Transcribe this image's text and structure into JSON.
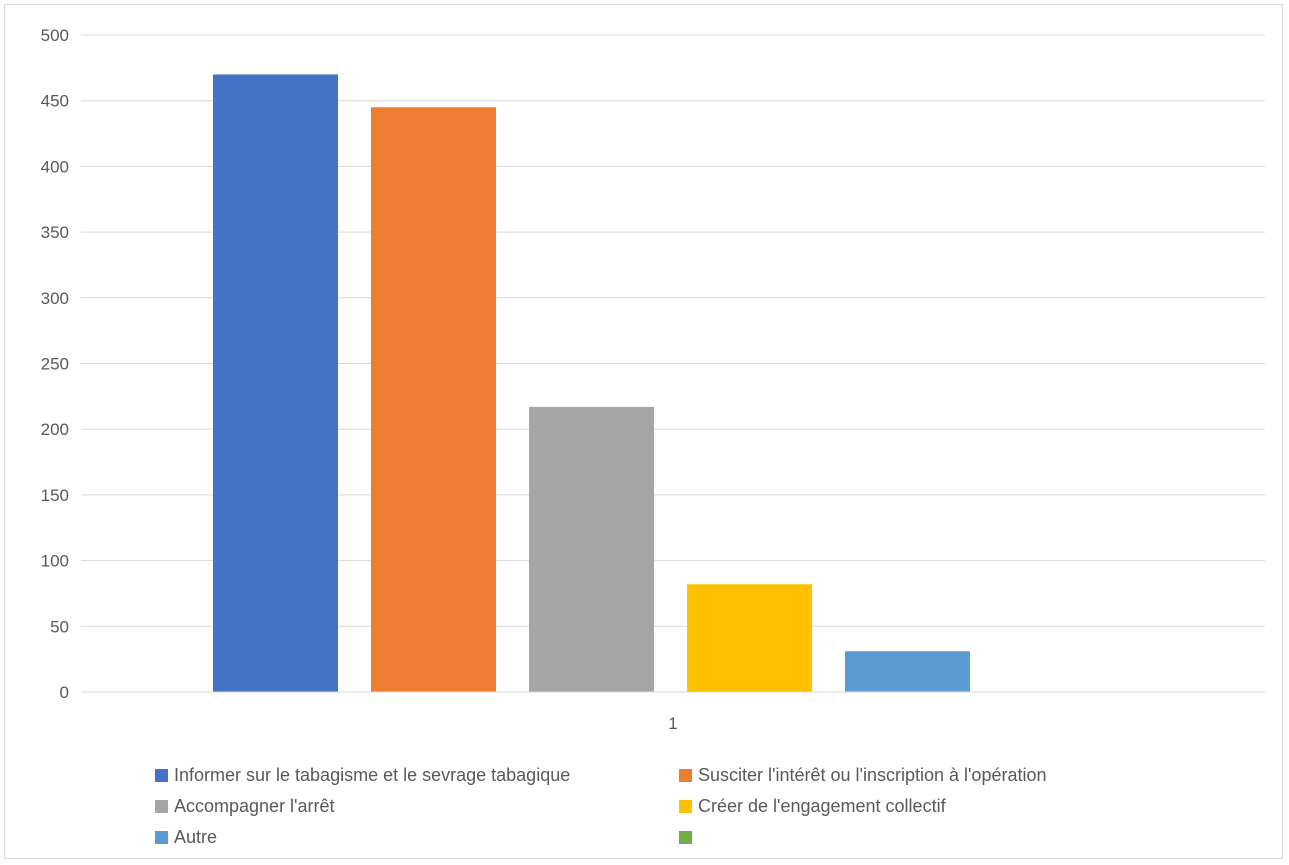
{
  "chart_data": {
    "type": "bar",
    "title": "",
    "xlabel": "",
    "ylabel": "",
    "categories": [
      "1"
    ],
    "ylim": [
      0,
      500
    ],
    "yticks": [
      0,
      50,
      100,
      150,
      200,
      250,
      300,
      350,
      400,
      450,
      500
    ],
    "grid": true,
    "legend_position": "bottom",
    "series": [
      {
        "name": "Informer sur le tabagisme et le sevrage tabagique",
        "values": [
          470
        ],
        "color": "#4472C4"
      },
      {
        "name": "Susciter l'intérêt ou l'inscription à l'opération",
        "values": [
          445
        ],
        "color": "#ED7D31"
      },
      {
        "name": "Accompagner l'arrêt",
        "values": [
          217
        ],
        "color": "#A5A5A5"
      },
      {
        "name": "Créer de l'engagement collectif",
        "values": [
          82
        ],
        "color": "#FFC000"
      },
      {
        "name": "Autre",
        "values": [
          31
        ],
        "color": "#5B9BD5"
      },
      {
        "name": "",
        "values": [
          0
        ],
        "color": "#70AD47"
      }
    ]
  }
}
